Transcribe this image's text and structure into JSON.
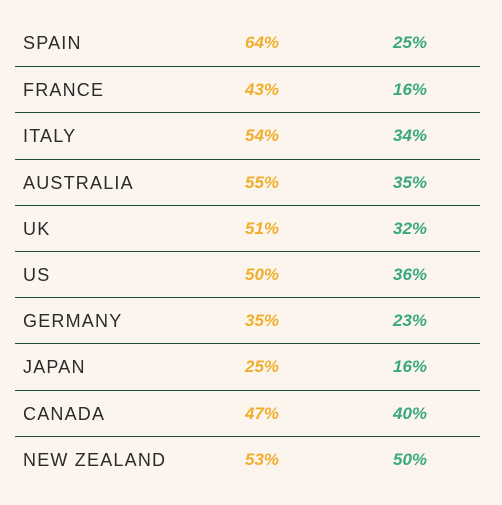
{
  "colors": {
    "background": "#fbf5ee",
    "divider": "#1f4a3a",
    "text": "#2b2b2b",
    "series_1": "#f0ae2c",
    "series_2": "#3aa880"
  },
  "chart_data": {
    "type": "table",
    "categories": [
      "SPAIN",
      "FRANCE",
      "ITALY",
      "AUSTRALIA",
      "UK",
      "US",
      "GERMANY",
      "JAPAN",
      "CANADA",
      "NEW ZEALAND"
    ],
    "series": [
      {
        "color": "#f0ae2c",
        "values": [
          64,
          43,
          54,
          55,
          51,
          50,
          35,
          25,
          47,
          53
        ],
        "labels": [
          "64%",
          "43%",
          "54%",
          "55%",
          "51%",
          "50%",
          "35%",
          "25%",
          "47%",
          "53%"
        ]
      },
      {
        "color": "#3aa880",
        "values": [
          25,
          16,
          34,
          35,
          32,
          36,
          23,
          16,
          40,
          50
        ],
        "labels": [
          "25%",
          "16%",
          "34%",
          "35%",
          "32%",
          "36%",
          "23%",
          "16%",
          "40%",
          "50%"
        ]
      }
    ]
  }
}
